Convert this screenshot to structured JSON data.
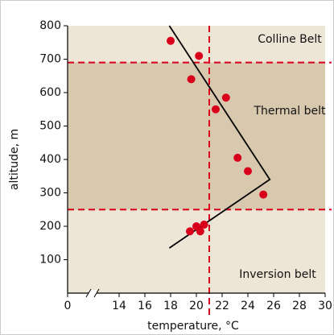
{
  "chart_data": {
    "type": "scatter",
    "xlabel": "temperature, °C",
    "ylabel": "altitude, m",
    "xlim": [
      10,
      30
    ],
    "xticks": [
      {
        "value": 10,
        "label": "0"
      },
      14,
      16,
      18,
      20,
      22,
      24,
      26,
      28,
      30
    ],
    "ylim": [
      0,
      800
    ],
    "yticks": [
      100,
      200,
      300,
      400,
      500,
      600,
      700,
      800
    ],
    "background": "#ede5d6",
    "bands": [
      {
        "from": 250,
        "to": 690,
        "color": "#d8c8ad"
      }
    ],
    "ref_lines": {
      "y": [
        250,
        690
      ],
      "x": [
        21
      ],
      "color": "#d9001b"
    },
    "points": {
      "color": "#d9001b",
      "x": [
        18,
        20.2,
        19.6,
        22.3,
        21.5,
        23.2,
        24,
        25.2,
        20,
        20.6,
        19.5,
        20.3
      ],
      "values": [
        755,
        710,
        640,
        585,
        550,
        405,
        365,
        295,
        200,
        205,
        185,
        185
      ]
    },
    "trend": {
      "color": "#000000",
      "x": [
        17.9,
        25.7,
        17.9
      ],
      "values": [
        800,
        340,
        135
      ]
    },
    "annotations": [
      "Colline Belt",
      "Thermal belt",
      "Inversion belt"
    ]
  }
}
